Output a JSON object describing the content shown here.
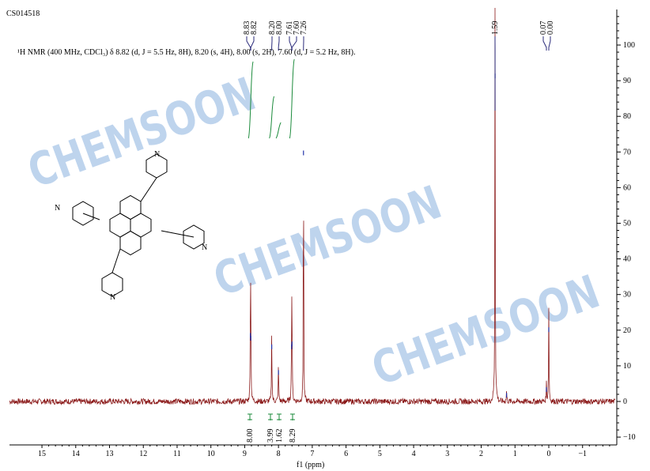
{
  "sample_id": "CS014518",
  "nmr_text": "¹H NMR (400 MHz, CDCl₃) δ 8.82 (d, J = 5.5 Hz, 8H), 8.20 (s, 4H), 8.00 (s, 2H), 7.60 (d, J = 5.2 Hz, 8H).",
  "watermark": "CHEMSOON",
  "colors": {
    "spectrum": "#8b1a1a",
    "integral": "#1a8a3a",
    "peak_label": "#2a2a7a",
    "watermark": "#a9c6e8"
  },
  "chart_data": {
    "type": "line",
    "xlabel": "f1 (ppm)",
    "ylabel": "",
    "xlim": [
      16,
      -2
    ],
    "x_reversed": true,
    "ylim": [
      -11,
      108
    ],
    "x_ticks": [
      15,
      14,
      13,
      12,
      11,
      10,
      9,
      8,
      7,
      6,
      5,
      4,
      3,
      2,
      1,
      0,
      -1
    ],
    "y_ticks": [
      -10,
      0,
      10,
      20,
      30,
      40,
      50,
      60,
      70,
      80,
      90,
      100
    ],
    "grid": false,
    "peaks": [
      {
        "ppm": 8.83,
        "height": 24
      },
      {
        "ppm": 8.82,
        "height": 23
      },
      {
        "ppm": 8.2,
        "height": 20
      },
      {
        "ppm": 8.0,
        "height": 11
      },
      {
        "ppm": 7.61,
        "height": 20
      },
      {
        "ppm": 7.6,
        "height": 21
      },
      {
        "ppm": 7.26,
        "height": 88
      },
      {
        "ppm": 1.59,
        "height": 115
      },
      {
        "ppm": 1.25,
        "height": 3
      },
      {
        "ppm": 0.07,
        "height": 5
      },
      {
        "ppm": 0.0,
        "height": 26
      }
    ],
    "peak_labels": [
      {
        "group": [
          8.83,
          8.82
        ],
        "labels": [
          "8.83",
          "8.82"
        ]
      },
      {
        "group": [
          8.2,
          8.0
        ],
        "labels": [
          "8.20",
          "8.00"
        ]
      },
      {
        "group": [
          7.61,
          7.6,
          7.26
        ],
        "labels": [
          "7.61",
          "7.60",
          "7.26"
        ]
      },
      {
        "group": [
          1.59
        ],
        "labels": [
          "1.59"
        ]
      },
      {
        "group": [
          0.07,
          0.0
        ],
        "labels": [
          "0.07",
          "0.00"
        ]
      }
    ],
    "integrals": [
      {
        "ppm": 8.82,
        "value": "8.00"
      },
      {
        "ppm": 8.2,
        "value": "3.99"
      },
      {
        "ppm": 8.0,
        "value": "1.62"
      },
      {
        "ppm": 7.6,
        "value": "8.29"
      }
    ]
  }
}
